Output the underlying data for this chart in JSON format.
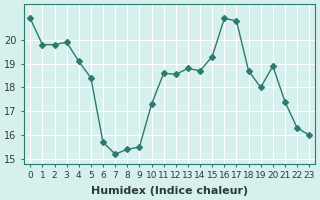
{
  "x": [
    0,
    1,
    2,
    3,
    4,
    5,
    6,
    7,
    8,
    9,
    10,
    11,
    12,
    13,
    14,
    15,
    16,
    17,
    18,
    19,
    20,
    21,
    22,
    23
  ],
  "y": [
    20.9,
    19.8,
    19.8,
    19.9,
    19.1,
    18.4,
    15.7,
    15.2,
    15.4,
    15.5,
    17.3,
    18.6,
    18.55,
    18.8,
    18.7,
    19.3,
    20.9,
    20.8,
    18.7,
    18.0,
    18.9,
    17.4,
    16.3,
    16.0
  ],
  "line_color": "#2d7a6e",
  "marker": "D",
  "marker_size": 3,
  "bg_color": "#d6f0ee",
  "grid_color": "#ffffff",
  "xlabel": "Humidex (Indice chaleur)",
  "ylabel_ticks": [
    15,
    16,
    17,
    18,
    19,
    20
  ],
  "ylim": [
    14.8,
    21.5
  ],
  "xlim": [
    -0.5,
    23.5
  ],
  "xlabel_fontsize": 8,
  "tick_fontsize": 7
}
